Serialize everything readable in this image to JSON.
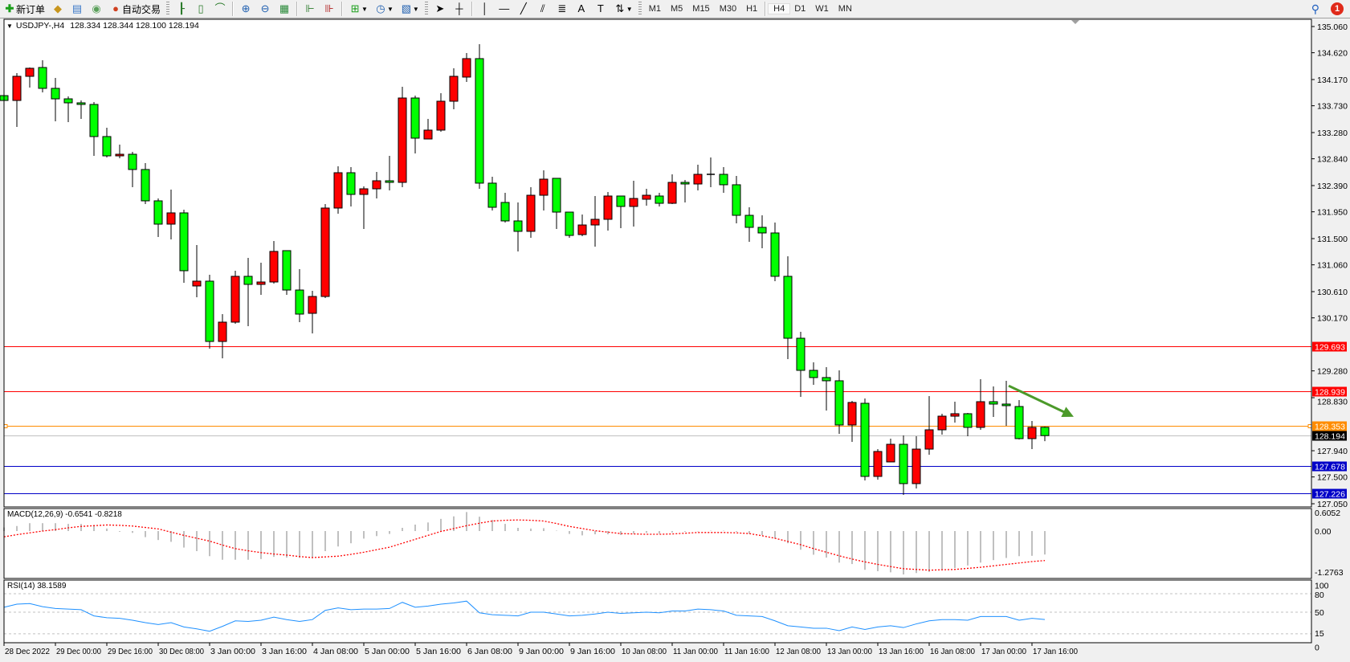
{
  "toolbar": {
    "new_order": "新订单",
    "auto_trading": "自动交易",
    "timeframes": [
      "M1",
      "M5",
      "M15",
      "M30",
      "H1",
      "H4",
      "D1",
      "W1",
      "MN"
    ],
    "active_timeframe": "H4",
    "notification_count": "1",
    "icons": [
      "new-order-icon",
      "experts-icon",
      "market-watch-icon",
      "signals-icon",
      "auto-trading-icon",
      "bar-chart-icon",
      "candlestick-icon",
      "line-chart-icon",
      "zoom-in-icon",
      "zoom-out-icon",
      "tile-windows-icon",
      "chart-shift-icon",
      "autoscroll-icon",
      "indicators-icon",
      "periods-clock-icon",
      "templates-icon",
      "cursor-icon",
      "crosshair-icon",
      "vertical-line-icon",
      "horizontal-line-icon",
      "trendline-icon",
      "equidistant-channel-icon",
      "fibonacci-icon",
      "text-icon",
      "text-label-icon",
      "arrows-icon",
      "search-icon",
      "notifications-icon"
    ]
  },
  "chart": {
    "symbol": "USDJPY-,H4",
    "ohlc": "128.334 128.344 128.100 128.194",
    "bull_color": "#ff0000",
    "bear_color": "#00ff00",
    "price_ticks": [
      "135.060",
      "134.620",
      "134.170",
      "133.730",
      "133.280",
      "132.840",
      "132.390",
      "131.950",
      "131.500",
      "131.060",
      "130.610",
      "130.170",
      "129.280",
      "128.830",
      "127.940",
      "127.500",
      "127.050"
    ],
    "levels": [
      {
        "price": 129.693,
        "label": "129.693",
        "color": "#ff0000"
      },
      {
        "price": 128.939,
        "label": "128.939",
        "color": "#ff0000"
      },
      {
        "price": 128.353,
        "label": "128.353",
        "color": "#ff8c00"
      },
      {
        "price": 128.194,
        "label": "128.194",
        "color": "#c0c0c0",
        "label_bg": "#000000"
      },
      {
        "price": 127.678,
        "label": "127.678",
        "color": "#0000c8"
      },
      {
        "price": 127.226,
        "label": "127.226",
        "color": "#0000c8"
      }
    ],
    "arrow": {
      "color": "#4c9a2a",
      "from": [
        78,
        129.03
      ],
      "to": [
        83,
        128.51
      ]
    },
    "time_labels": [
      "28 Dec 2022",
      "29 Dec 00:00",
      "29 Dec 16:00",
      "30 Dec 08:00",
      "3 Jan 00:00",
      "3 Jan 16:00",
      "4 Jan 08:00",
      "5 Jan 00:00",
      "5 Jan 16:00",
      "6 Jan 08:00",
      "9 Jan 00:00",
      "9 Jan 16:00",
      "10 Jan 08:00",
      "11 Jan 00:00",
      "11 Jan 16:00",
      "12 Jan 08:00",
      "13 Jan 00:00",
      "13 Jan 16:00",
      "16 Jan 08:00",
      "17 Jan 00:00",
      "17 Jan 16:00"
    ],
    "candles": [
      [
        133.9,
        134.197,
        133.739,
        133.819
      ],
      [
        133.819,
        134.278,
        133.375,
        134.224
      ],
      [
        134.224,
        134.372,
        134.035,
        134.359
      ],
      [
        134.372,
        134.494,
        133.954,
        134.022
      ],
      [
        134.022,
        134.197,
        133.469,
        133.846
      ],
      [
        133.846,
        133.887,
        133.455,
        133.779
      ],
      [
        133.779,
        133.819,
        133.509,
        133.752
      ],
      [
        133.752,
        133.793,
        132.889,
        133.213
      ],
      [
        133.213,
        133.361,
        132.862,
        132.889
      ],
      [
        132.889,
        133.078,
        132.849,
        132.916
      ],
      [
        132.916,
        132.957,
        132.363,
        132.66
      ],
      [
        132.66,
        132.768,
        132.08,
        132.134
      ],
      [
        132.134,
        132.174,
        131.527,
        131.743
      ],
      [
        131.743,
        132.323,
        131.487,
        131.932
      ],
      [
        131.932,
        131.986,
        130.759,
        130.961
      ],
      [
        130.705,
        131.392,
        130.516,
        130.786
      ],
      [
        130.786,
        130.893,
        129.653,
        129.774
      ],
      [
        129.774,
        130.233,
        129.491,
        130.098
      ],
      [
        130.098,
        130.961,
        130.071,
        130.867
      ],
      [
        130.867,
        131.177,
        130.031,
        130.732
      ],
      [
        130.732,
        131.096,
        130.556,
        130.772
      ],
      [
        130.772,
        131.46,
        130.745,
        131.285
      ],
      [
        131.298,
        131.298,
        130.556,
        130.637
      ],
      [
        130.637,
        130.988,
        130.098,
        130.233
      ],
      [
        130.246,
        130.624,
        129.909,
        130.529
      ],
      [
        130.529,
        132.08,
        130.502,
        132.013
      ],
      [
        132.013,
        132.714,
        131.918,
        132.606
      ],
      [
        132.606,
        132.7,
        132.04,
        132.242
      ],
      [
        132.242,
        132.377,
        131.662,
        132.336
      ],
      [
        132.336,
        132.619,
        132.174,
        132.471
      ],
      [
        132.471,
        132.889,
        132.309,
        132.444
      ],
      [
        132.444,
        134.049,
        132.363,
        133.86
      ],
      [
        133.86,
        133.9,
        132.93,
        133.186
      ],
      [
        133.172,
        133.509,
        133.172,
        133.321
      ],
      [
        133.321,
        133.941,
        133.294,
        133.806
      ],
      [
        133.806,
        134.359,
        133.671,
        134.224
      ],
      [
        134.211,
        134.615,
        134.13,
        134.521
      ],
      [
        134.521,
        134.763,
        132.336,
        132.431
      ],
      [
        132.431,
        132.539,
        131.972,
        132.026
      ],
      [
        132.107,
        132.269,
        131.77,
        131.797
      ],
      [
        131.797,
        132.107,
        131.285,
        131.622
      ],
      [
        131.622,
        132.363,
        131.514,
        132.228
      ],
      [
        132.228,
        132.646,
        131.972,
        132.498
      ],
      [
        132.512,
        132.512,
        131.662,
        131.945
      ],
      [
        131.945,
        131.945,
        131.514,
        131.554
      ],
      [
        131.568,
        131.905,
        131.541,
        131.729
      ],
      [
        131.729,
        132.215,
        131.365,
        131.824
      ],
      [
        131.824,
        132.282,
        131.635,
        132.215
      ],
      [
        132.215,
        132.215,
        131.675,
        132.04
      ],
      [
        132.04,
        132.471,
        131.702,
        132.174
      ],
      [
        132.161,
        132.336,
        132.053,
        132.228
      ],
      [
        132.215,
        132.269,
        132.04,
        132.093
      ],
      [
        132.093,
        132.579,
        132.08,
        132.444
      ],
      [
        132.444,
        132.485,
        132.107,
        132.417
      ],
      [
        132.417,
        132.741,
        132.309,
        132.579
      ],
      [
        132.579,
        132.862,
        132.363,
        132.575
      ],
      [
        132.579,
        132.7,
        132.269,
        132.404
      ],
      [
        132.404,
        132.552,
        131.756,
        131.891
      ],
      [
        131.891,
        132.026,
        131.446,
        131.689
      ],
      [
        131.689,
        131.891,
        131.338,
        131.595
      ],
      [
        131.595,
        131.77,
        130.786,
        130.867
      ],
      [
        130.867,
        131.204,
        129.478,
        129.828
      ],
      [
        129.828,
        129.936,
        128.844,
        129.289
      ],
      [
        129.289,
        129.424,
        129.046,
        129.168
      ],
      [
        129.168,
        129.343,
        128.615,
        129.114
      ],
      [
        129.114,
        129.289,
        128.224,
        128.372
      ],
      [
        128.372,
        128.776,
        128.089,
        128.75
      ],
      [
        128.736,
        128.817,
        127.442,
        127.509
      ],
      [
        127.509,
        127.967,
        127.455,
        127.927
      ],
      [
        127.752,
        128.143,
        127.752,
        128.048
      ],
      [
        128.048,
        128.197,
        127.199,
        127.388
      ],
      [
        127.388,
        128.183,
        127.307,
        127.967
      ],
      [
        127.967,
        128.857,
        127.873,
        128.291
      ],
      [
        128.291,
        128.561,
        128.21,
        128.52
      ],
      [
        128.52,
        128.763,
        128.412,
        128.561
      ],
      [
        128.561,
        128.574,
        128.183,
        128.332
      ],
      [
        128.332,
        129.141,
        128.291,
        128.763
      ],
      [
        128.763,
        129.019,
        128.507,
        128.723
      ],
      [
        128.723,
        129.114,
        128.358,
        128.696
      ],
      [
        128.682,
        128.79,
        128.129,
        128.143
      ],
      [
        128.143,
        128.439,
        127.967,
        128.332
      ],
      [
        128.334,
        128.344,
        128.1,
        128.194
      ]
    ]
  },
  "macd": {
    "title": "MACD(12,26,9) -0.6541 -0.8218",
    "ticks": [
      "0.6052",
      "0.00",
      "-1.2763"
    ],
    "range": [
      -1.2763,
      0.6052
    ],
    "hist_color": "#c0c0c0",
    "signal_color": "#ff0000",
    "main": [
      0.1,
      0.14,
      0.22,
      0.22,
      0.22,
      0.2,
      0.2,
      0.17,
      0.07,
      -0.02,
      -0.05,
      -0.17,
      -0.25,
      -0.3,
      -0.46,
      -0.56,
      -0.7,
      -0.8,
      -0.8,
      -0.8,
      -0.78,
      -0.72,
      -0.74,
      -0.75,
      -0.75,
      -0.56,
      -0.43,
      -0.34,
      -0.21,
      -0.14,
      -0.08,
      0.09,
      0.18,
      0.24,
      0.34,
      0.41,
      0.53,
      0.4,
      0.31,
      0.2,
      0.09,
      0.07,
      0.08,
      0.01,
      -0.08,
      -0.12,
      -0.09,
      -0.09,
      -0.11,
      -0.07,
      -0.05,
      -0.07,
      -0.04,
      -0.02,
      -0.01,
      0.01,
      0.01,
      -0.02,
      -0.07,
      -0.11,
      -0.21,
      -0.34,
      -0.52,
      -0.66,
      -0.74,
      -0.88,
      -0.92,
      -1.08,
      -1.12,
      -1.15,
      -1.21,
      -1.17,
      -1.14,
      -1.07,
      -1.03,
      -0.96,
      -0.88,
      -0.81,
      -0.75,
      -0.7,
      -0.69,
      -0.6541
    ],
    "signal": [
      -0.16,
      -0.1,
      -0.05,
      0.0,
      0.04,
      0.09,
      0.13,
      0.15,
      0.17,
      0.16,
      0.14,
      0.1,
      0.06,
      -0.03,
      -0.12,
      -0.2,
      -0.28,
      -0.39,
      -0.49,
      -0.55,
      -0.6,
      -0.64,
      -0.67,
      -0.71,
      -0.74,
      -0.72,
      -0.7,
      -0.65,
      -0.59,
      -0.52,
      -0.45,
      -0.34,
      -0.23,
      -0.12,
      -0.01,
      0.07,
      0.15,
      0.22,
      0.28,
      0.3,
      0.31,
      0.3,
      0.28,
      0.21,
      0.13,
      0.07,
      0.01,
      -0.03,
      -0.07,
      -0.08,
      -0.09,
      -0.09,
      -0.08,
      -0.06,
      -0.04,
      -0.04,
      -0.04,
      -0.05,
      -0.07,
      -0.13,
      -0.2,
      -0.29,
      -0.38,
      -0.49,
      -0.59,
      -0.69,
      -0.78,
      -0.86,
      -0.93,
      -0.99,
      -1.05,
      -1.07,
      -1.09,
      -1.08,
      -1.07,
      -1.04,
      -1.01,
      -0.97,
      -0.93,
      -0.89,
      -0.85,
      -0.8218
    ]
  },
  "rsi": {
    "title": "RSI(14) 38.1589",
    "ticks": [
      "100",
      "80",
      "50",
      "15",
      "0"
    ],
    "levels": [
      80,
      50,
      15
    ],
    "line_color": "#1e90ff",
    "values": [
      58,
      63,
      64,
      59,
      56,
      55,
      54,
      44,
      41,
      40,
      37,
      33,
      30,
      33,
      26,
      23,
      19,
      27,
      36,
      35,
      37,
      42,
      38,
      35,
      38,
      53,
      57,
      54,
      55,
      55,
      56,
      66,
      58,
      60,
      63,
      65,
      68,
      49,
      46,
      45,
      44,
      50,
      50,
      47,
      44,
      45,
      47,
      50,
      48,
      49,
      50,
      49,
      52,
      52,
      55,
      54,
      52,
      45,
      44,
      43,
      36,
      28,
      26,
      24,
      24,
      20,
      26,
      22,
      26,
      28,
      25,
      31,
      36,
      38,
      38,
      37,
      43,
      43,
      43,
      37,
      40,
      38.1589
    ]
  }
}
